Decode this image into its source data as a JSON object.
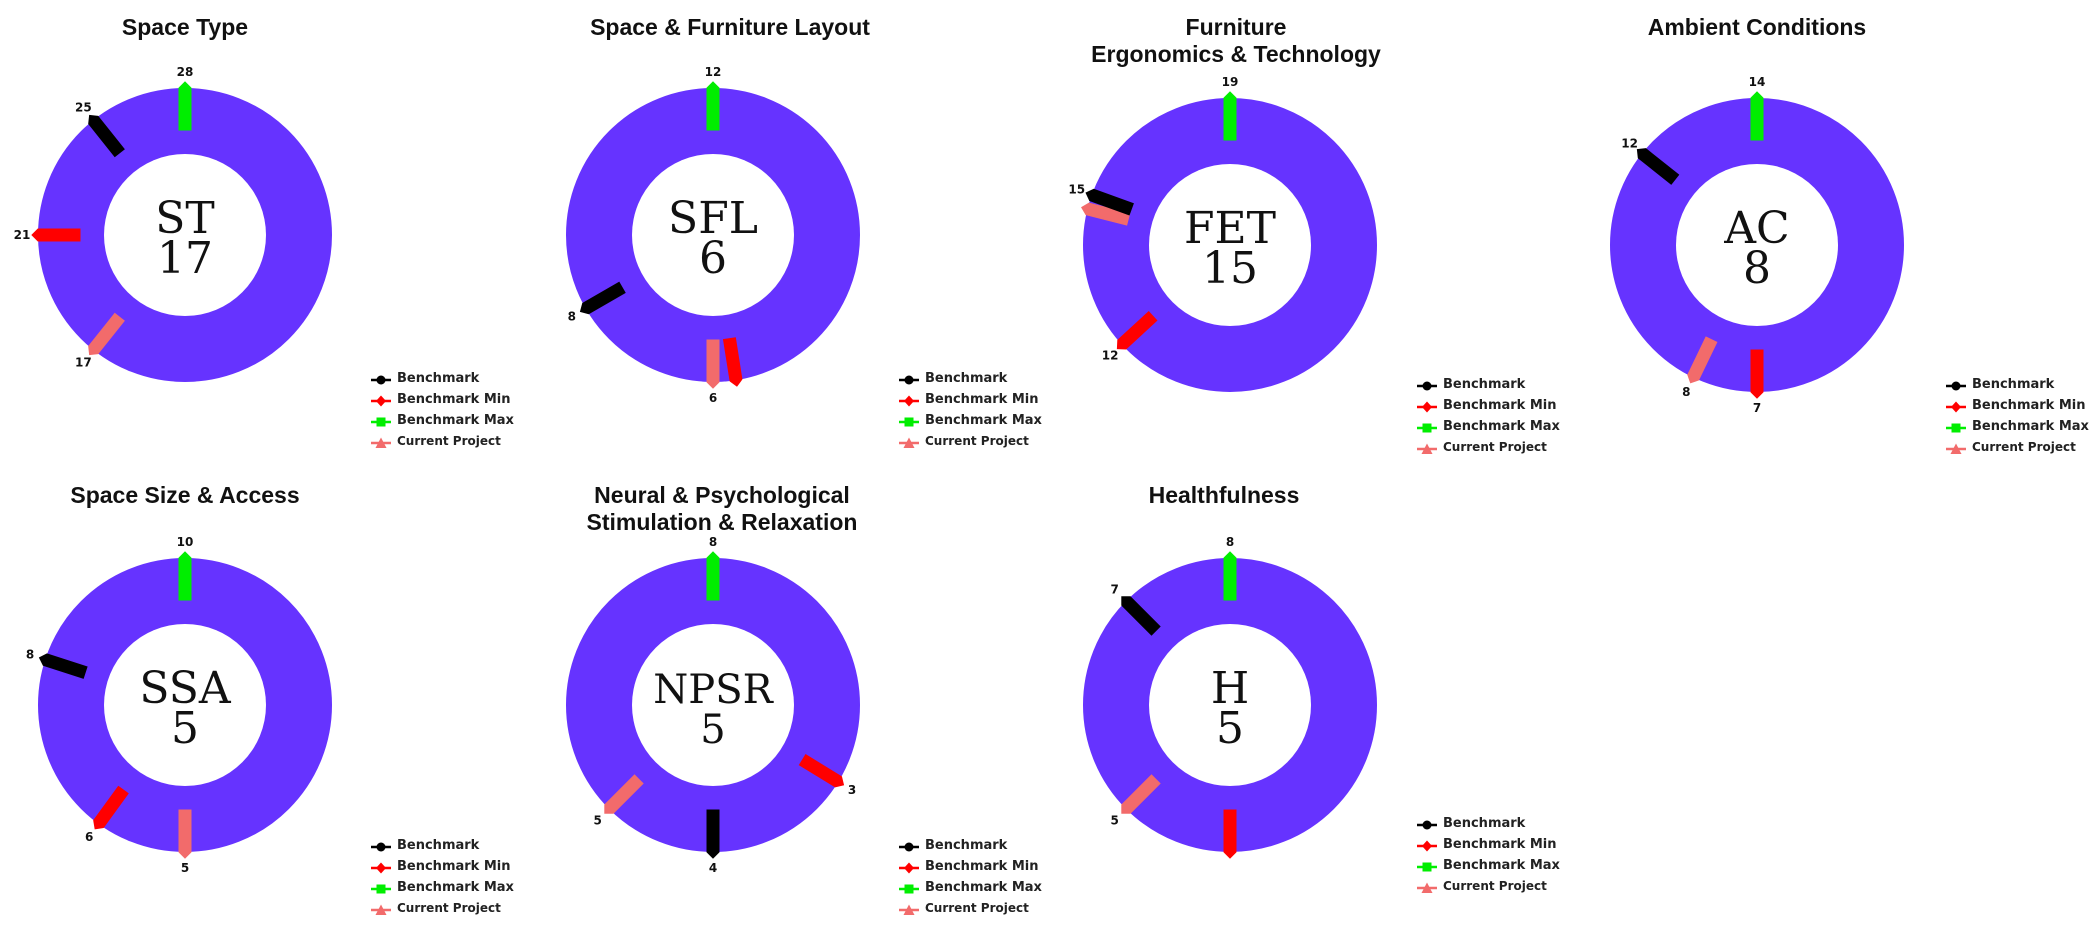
{
  "colors": {
    "ring": "#6633ff",
    "benchmark": "#000000",
    "benchmark_min": "#ff0000",
    "benchmark_max": "#00ee00",
    "current_project": "#f26b6b"
  },
  "legend": [
    {
      "key": "benchmark",
      "label": "Benchmark",
      "marker": "circle-icon"
    },
    {
      "key": "benchmark_min",
      "label": "Benchmark Min",
      "marker": "diamond-icon"
    },
    {
      "key": "benchmark_max",
      "label": "Benchmark Max",
      "marker": "square-icon"
    },
    {
      "key": "current_project",
      "label": "Current Project",
      "marker": "triangle-icon"
    }
  ],
  "chart_data": [
    {
      "type": "gauge",
      "title": [
        "Space Type"
      ],
      "abbr": "ST",
      "score": "17",
      "range": [
        0,
        28
      ],
      "series": [
        {
          "key": "benchmark",
          "value": 25,
          "label": "25"
        },
        {
          "key": "benchmark_min",
          "value": 21,
          "label": "21"
        },
        {
          "key": "benchmark_max",
          "value": 28,
          "label": "28"
        },
        {
          "key": "current_project",
          "value": 17,
          "label": "17"
        }
      ]
    },
    {
      "type": "gauge",
      "title": [
        "Space & Furniture Layout"
      ],
      "abbr": "SFL",
      "score": "6",
      "range": [
        0,
        12
      ],
      "series": [
        {
          "key": "benchmark",
          "value": 8,
          "label": "8"
        },
        {
          "key": "benchmark_min",
          "value": 5.7,
          "label": ""
        },
        {
          "key": "benchmark_max",
          "value": 12,
          "label": "12"
        },
        {
          "key": "current_project",
          "value": 6,
          "label": "6"
        }
      ]
    },
    {
      "type": "gauge",
      "title": [
        "Furniture",
        "Ergonomics & Technology"
      ],
      "abbr": "FET",
      "score": "15",
      "range": [
        0,
        19
      ],
      "series": [
        {
          "key": "benchmark",
          "value": 15.3,
          "label": "15"
        },
        {
          "key": "benchmark_min",
          "value": 12,
          "label": "12"
        },
        {
          "key": "benchmark_max",
          "value": 19,
          "label": "19"
        },
        {
          "key": "current_project",
          "value": 15,
          "label": ""
        }
      ]
    },
    {
      "type": "gauge",
      "title": [
        "Ambient Conditions"
      ],
      "abbr": "AC",
      "score": "8",
      "range": [
        0,
        14
      ],
      "series": [
        {
          "key": "benchmark",
          "value": 12,
          "label": "12"
        },
        {
          "key": "benchmark_min",
          "value": 7,
          "label": "7"
        },
        {
          "key": "benchmark_max",
          "value": 14,
          "label": "14"
        },
        {
          "key": "current_project",
          "value": 8,
          "label": "8"
        }
      ]
    },
    {
      "type": "gauge",
      "title": [
        "Space Size & Access"
      ],
      "abbr": "SSA",
      "score": "5",
      "range": [
        0,
        10
      ],
      "series": [
        {
          "key": "benchmark",
          "value": 8,
          "label": "8"
        },
        {
          "key": "benchmark_min",
          "value": 6,
          "label": "6"
        },
        {
          "key": "benchmark_max",
          "value": 10,
          "label": "10"
        },
        {
          "key": "current_project",
          "value": 5,
          "label": "5"
        }
      ]
    },
    {
      "type": "gauge",
      "title": [
        "Neural & Psychological",
        "Stimulation & Relaxation"
      ],
      "abbr": "NPSR",
      "score": "5",
      "range": [
        0,
        8
      ],
      "series": [
        {
          "key": "benchmark",
          "value": 4,
          "label": "4"
        },
        {
          "key": "benchmark_min",
          "value": 2.7,
          "label": "3"
        },
        {
          "key": "benchmark_max",
          "value": 8,
          "label": "8"
        },
        {
          "key": "current_project",
          "value": 5,
          "label": "5"
        }
      ]
    },
    {
      "type": "gauge",
      "title": [
        "Healthfulness"
      ],
      "abbr": "H",
      "score": "5",
      "range": [
        0,
        8
      ],
      "series": [
        {
          "key": "benchmark",
          "value": 7,
          "label": "7"
        },
        {
          "key": "benchmark_min",
          "value": 4,
          "label": ""
        },
        {
          "key": "benchmark_max",
          "value": 8,
          "label": "8"
        },
        {
          "key": "current_project",
          "value": 5,
          "label": "5"
        }
      ]
    }
  ]
}
